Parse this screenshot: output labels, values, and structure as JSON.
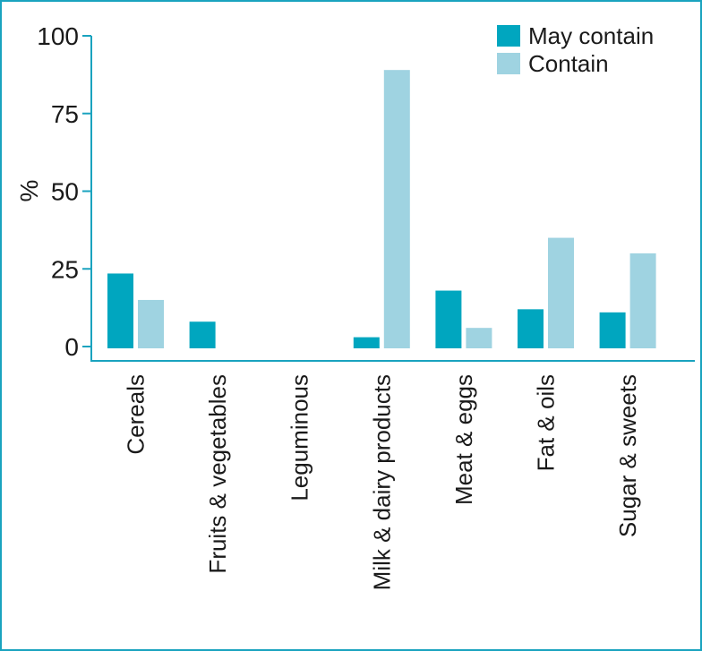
{
  "chart_data": {
    "type": "bar",
    "title": "",
    "xlabel": "",
    "ylabel": "%",
    "ylim": [
      0,
      100
    ],
    "yticks": [
      0,
      25,
      50,
      75,
      100
    ],
    "grid": false,
    "legend_position": "top-right",
    "categories": [
      "Cereals",
      "Fruits & vegetables",
      "Leguminous",
      "Milk & dairy products",
      "Meat & eggs",
      "Fat & oils",
      "Sugar & sweets"
    ],
    "series": [
      {
        "name": "May contain",
        "color": "#00a6bf",
        "values": [
          23.5,
          8,
          0,
          3,
          18,
          12,
          11
        ]
      },
      {
        "name": "Contain",
        "color": "#9fd3e1",
        "values": [
          15,
          0,
          0,
          89,
          6,
          35,
          30
        ]
      }
    ],
    "colors": {
      "axis": "#1aa3bf",
      "frame": "#1aa3bf",
      "text": "#1a1a1a"
    }
  }
}
